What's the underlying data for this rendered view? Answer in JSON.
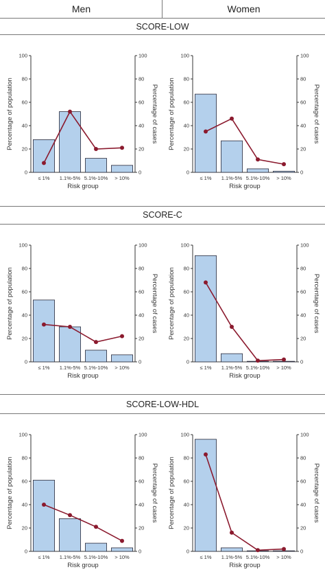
{
  "headers": {
    "men": "Men",
    "women": "Women"
  },
  "sections": [
    {
      "title": "SCORE-LOW"
    },
    {
      "title": "SCORE-C"
    },
    {
      "title": "SCORE-LOW-HDL"
    }
  ],
  "colors": {
    "bar_fill": "#b4d0ec",
    "bar_stroke": "#2a2a3a",
    "line": "#8b1a2e"
  },
  "chart_data": [
    {
      "type": "bar",
      "section": "SCORE-LOW",
      "group": "Men",
      "categories": [
        "≤ 1%",
        "1.1%-5%",
        "5.1%-10%",
        "> 10%"
      ],
      "xlabel": "Risk group",
      "ylabel_left": "Percentage of population",
      "ylabel_right": "Percentage of cases",
      "ylim": [
        0,
        100
      ],
      "yticks": [
        0,
        20,
        40,
        60,
        80,
        100
      ],
      "series": [
        {
          "name": "Percentage of population",
          "type": "bar",
          "axis": "left",
          "values": [
            28,
            52,
            12,
            6
          ]
        },
        {
          "name": "Percentage of cases",
          "type": "line",
          "axis": "right",
          "values": [
            8,
            52,
            20,
            21
          ]
        }
      ]
    },
    {
      "type": "bar",
      "section": "SCORE-LOW",
      "group": "Women",
      "categories": [
        "≤ 1%",
        "1.1%-5%",
        "5.1%-10%",
        "> 10%"
      ],
      "xlabel": "Risk group",
      "ylabel_left": "Percentage of population",
      "ylabel_right": "Percentage of cases",
      "ylim": [
        0,
        100
      ],
      "yticks": [
        0,
        20,
        40,
        60,
        80,
        100
      ],
      "series": [
        {
          "name": "Percentage of population",
          "type": "bar",
          "axis": "left",
          "values": [
            67,
            27,
            3,
            1
          ]
        },
        {
          "name": "Percentage of cases",
          "type": "line",
          "axis": "right",
          "values": [
            35,
            46,
            11,
            7
          ]
        }
      ]
    },
    {
      "type": "bar",
      "section": "SCORE-C",
      "group": "Men",
      "categories": [
        "≤ 1%",
        "1.1%-5%",
        "5.1%-10%",
        "> 10%"
      ],
      "xlabel": "Risk group",
      "ylabel_left": "Percentage of population",
      "ylabel_right": "Percentage of cases",
      "ylim": [
        0,
        100
      ],
      "yticks": [
        0,
        20,
        40,
        60,
        80,
        100
      ],
      "series": [
        {
          "name": "Percentage of population",
          "type": "bar",
          "axis": "left",
          "values": [
            53,
            30,
            10,
            6
          ]
        },
        {
          "name": "Percentage of cases",
          "type": "line",
          "axis": "right",
          "values": [
            32,
            30,
            17,
            22
          ]
        }
      ]
    },
    {
      "type": "bar",
      "section": "SCORE-C",
      "group": "Women",
      "categories": [
        "≤ 1%",
        "1.1%-5%",
        "5.1%-10%",
        "> 10%"
      ],
      "xlabel": "Risk group",
      "ylabel_left": "Percentage of population",
      "ylabel_right": "Percentage of cases",
      "ylim": [
        0,
        100
      ],
      "yticks": [
        0,
        20,
        40,
        60,
        80,
        100
      ],
      "series": [
        {
          "name": "Percentage of population",
          "type": "bar",
          "axis": "left",
          "values": [
            91,
            7,
            0.5,
            0.5
          ]
        },
        {
          "name": "Percentage of cases",
          "type": "line",
          "axis": "right",
          "values": [
            68,
            30,
            1,
            2
          ]
        }
      ]
    },
    {
      "type": "bar",
      "section": "SCORE-LOW-HDL",
      "group": "Men",
      "categories": [
        "≤ 1%",
        "1.1%-5%",
        "5.1%-10%",
        "> 10%"
      ],
      "xlabel": "Risk group",
      "ylabel_left": "Percentage of population",
      "ylabel_right": "Percentage of cases",
      "ylim": [
        0,
        100
      ],
      "yticks": [
        0,
        20,
        40,
        60,
        80,
        100
      ],
      "series": [
        {
          "name": "Percentage of population",
          "type": "bar",
          "axis": "left",
          "values": [
            61,
            28,
            7,
            3
          ]
        },
        {
          "name": "Percentage of cases",
          "type": "line",
          "axis": "right",
          "values": [
            40,
            31,
            21,
            9
          ]
        }
      ]
    },
    {
      "type": "bar",
      "section": "SCORE-LOW-HDL",
      "group": "Women",
      "categories": [
        "≤ 1%",
        "1.1%-5%",
        "5.1%-10%",
        "> 10%"
      ],
      "xlabel": "Risk group",
      "ylabel_left": "Percentage of population",
      "ylabel_right": "Percentage of cases",
      "ylim": [
        0,
        100
      ],
      "yticks": [
        0,
        20,
        40,
        60,
        80,
        100
      ],
      "series": [
        {
          "name": "Percentage of population",
          "type": "bar",
          "axis": "left",
          "values": [
            96,
            3,
            0.5,
            0.5
          ]
        },
        {
          "name": "Percentage of cases",
          "type": "line",
          "axis": "right",
          "values": [
            83,
            16,
            1,
            2
          ]
        }
      ]
    }
  ]
}
